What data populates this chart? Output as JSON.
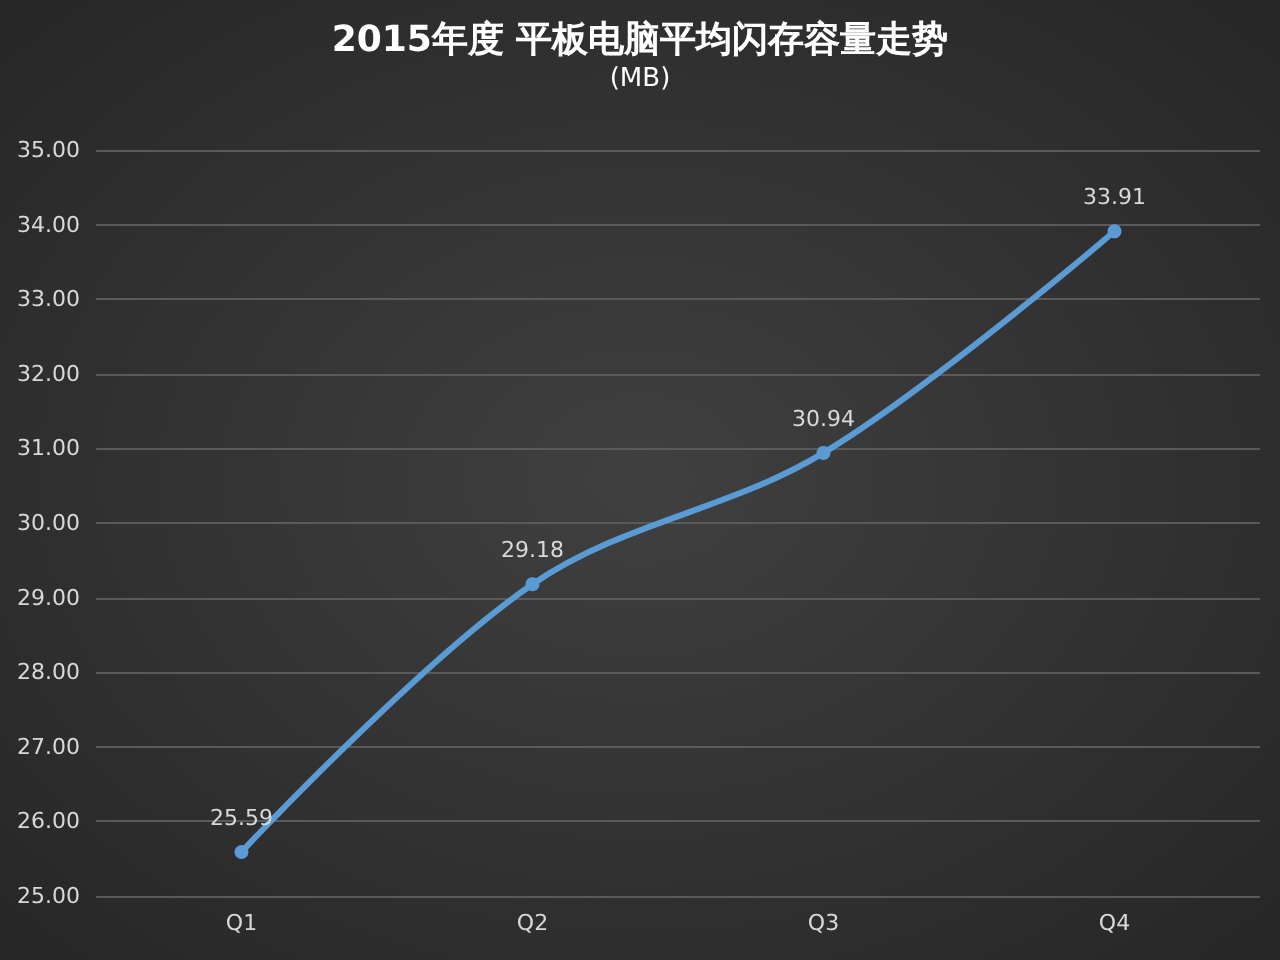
{
  "chart_data": {
    "type": "line",
    "title": "2015年度 平板电脑平均闪存容量走势",
    "subtitle": "(MB)",
    "categories": [
      "Q1",
      "Q2",
      "Q3",
      "Q4"
    ],
    "series": [
      {
        "color": "#5b9bd5",
        "values": [
          25.59,
          29.18,
          30.94,
          33.91
        ]
      }
    ],
    "ylim": [
      25,
      35
    ],
    "yticks": [
      {
        "value": 25,
        "label": "25.00"
      },
      {
        "value": 26,
        "label": "26.00"
      },
      {
        "value": 27,
        "label": "27.00"
      },
      {
        "value": 28,
        "label": "28.00"
      },
      {
        "value": 29,
        "label": "29.00"
      },
      {
        "value": 30,
        "label": "30.00"
      },
      {
        "value": 31,
        "label": "31.00"
      },
      {
        "value": 32,
        "label": "32.00"
      },
      {
        "value": 33,
        "label": "33.00"
      },
      {
        "value": 34,
        "label": "34.00"
      },
      {
        "value": 35,
        "label": "35.00"
      }
    ],
    "grid": "y",
    "marker": "circle",
    "line_style": "solid",
    "data_labels": true
  }
}
